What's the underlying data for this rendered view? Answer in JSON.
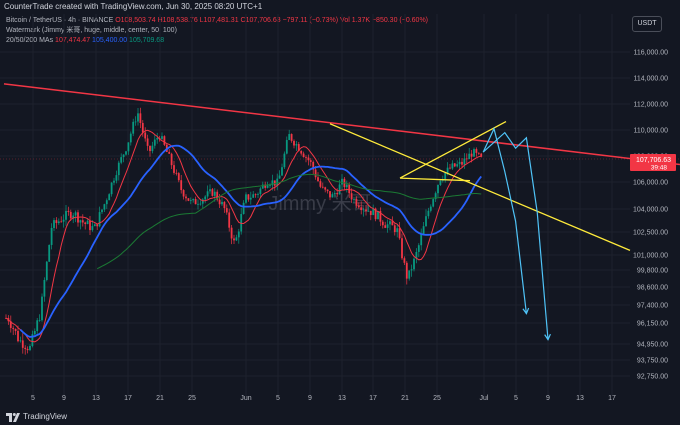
{
  "header": {
    "created_by": "CounterTrade created with TradingView.com, Jun 30, 2025 08:20 UTC+1"
  },
  "legend": {
    "symbol": "Bitcoin / TetherUS · 4h · BINANCE",
    "ohlc": "O108,503.74 H108,538.76 L107,481.31 C107,706.63 −797.11 (−0.73%)",
    "volume": "Vol 1.37K −850.30 (−0.60%)",
    "watermark_line": "Watermark (Jimmy 米哥, huge, middle, center, 50, 100)",
    "mas_label": "20/50/200 MAs",
    "ma20": "107,474.47",
    "ma50": "105,400.00",
    "ma200": "105,709.68"
  },
  "currency_button": "USDT",
  "watermark": "Jimmy 米哥",
  "footer": {
    "brand": "TradingView"
  },
  "colors": {
    "background": "#131722",
    "grid": "#1e222d",
    "up": "#089981",
    "down": "#f23645",
    "ma20": "#f23645",
    "ma50": "#2962ff",
    "ma200": "#1b7a34",
    "resistance": "#f23645",
    "wedge": "#ffeb3b",
    "projection": "#4fc3f7"
  },
  "chart_data": {
    "type": "candlestick",
    "title": "Bitcoin / TetherUS · 4h · BINANCE",
    "x_ticks": [
      "5",
      "9",
      "13",
      "17",
      "21",
      "25",
      "Jun",
      "5",
      "9",
      "13",
      "17",
      "21",
      "25",
      "Jul",
      "5",
      "9",
      "13",
      "17"
    ],
    "y_ticks": [
      "116,000.00",
      "114,000.00",
      "112,000.00",
      "110,000.00",
      "108,000.00",
      "106,000.00",
      "104,000.00",
      "102,500.00",
      "101,000.00",
      "99,800.00",
      "98,600.00",
      "97,400.00",
      "96,150.00",
      "94,950.00",
      "93,750.00",
      "92,750.00"
    ],
    "ylim": [
      92000,
      117000
    ],
    "last_price": {
      "value": "107,706.63",
      "countdown": "39:48"
    },
    "price_path": [
      [
        0,
        96500
      ],
      [
        1,
        95200
      ],
      [
        2,
        94600
      ],
      [
        3,
        96800
      ],
      [
        4,
        102800
      ],
      [
        5,
        103400
      ],
      [
        6,
        103800
      ],
      [
        7,
        103100
      ],
      [
        8,
        102700
      ],
      [
        9,
        104500
      ],
      [
        10,
        106800
      ],
      [
        11,
        108800
      ],
      [
        12,
        111400
      ],
      [
        13,
        108200
      ],
      [
        14,
        109700
      ],
      [
        15,
        107700
      ],
      [
        16,
        105500
      ],
      [
        17,
        104400
      ],
      [
        18,
        104800
      ],
      [
        19,
        105300
      ],
      [
        20,
        104100
      ],
      [
        21,
        101600
      ],
      [
        22,
        104800
      ],
      [
        23,
        105100
      ],
      [
        24,
        106100
      ],
      [
        25,
        105900
      ],
      [
        26,
        109600
      ],
      [
        27,
        108600
      ],
      [
        28,
        107500
      ],
      [
        29,
        105500
      ],
      [
        30,
        104900
      ],
      [
        31,
        106000
      ],
      [
        32,
        104700
      ],
      [
        33,
        104100
      ],
      [
        34,
        103700
      ],
      [
        35,
        103000
      ],
      [
        36,
        102700
      ],
      [
        37,
        99100
      ],
      [
        38,
        101500
      ],
      [
        39,
        104100
      ],
      [
        40,
        106300
      ],
      [
        41,
        107100
      ],
      [
        42,
        107400
      ],
      [
        43,
        108300
      ],
      [
        44,
        107600
      ]
    ],
    "projection_paths": [
      [
        [
          44,
          108300
        ],
        [
          45,
          110100
        ],
        [
          46,
          106800
        ],
        [
          47,
          103200
        ],
        [
          48,
          96800
        ]
      ],
      [
        [
          44,
          108300
        ],
        [
          46,
          109800
        ],
        [
          47,
          108600
        ],
        [
          48,
          109400
        ],
        [
          49,
          103800
        ],
        [
          50,
          95200
        ]
      ]
    ],
    "overlays": [
      "Red descending resistance from the May high through the June high",
      "Yellow rising wedge converging near 110,000",
      "Yellow descending support trendline",
      "Cyan arrows projecting a breakdown below 97,000"
    ]
  }
}
